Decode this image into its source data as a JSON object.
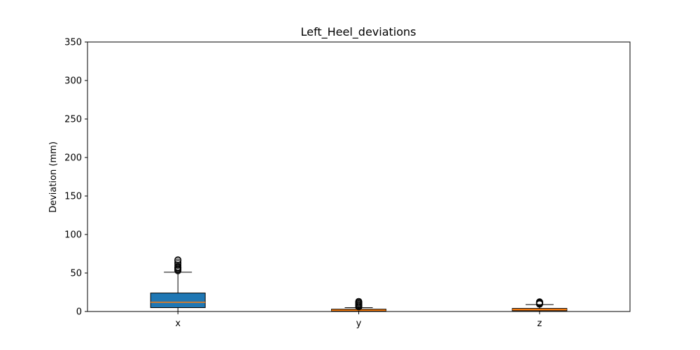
{
  "chart_data": {
    "type": "box",
    "title": "Left_Heel_deviations",
    "xlabel": "",
    "ylabel": "Deviation (mm)",
    "ylim": [
      0,
      350
    ],
    "yticks": [
      0,
      50,
      100,
      150,
      200,
      250,
      300,
      350
    ],
    "grid": false,
    "categories": [
      "x",
      "y",
      "z"
    ],
    "boxes": [
      {
        "category": "x",
        "q1": 5,
        "median": 12,
        "q3": 24,
        "whisker_low": 0,
        "whisker_high": 51,
        "outliers": [
          53,
          54,
          55,
          56,
          57,
          58,
          60,
          62,
          64,
          66,
          67
        ],
        "color": "#1f77b4"
      },
      {
        "category": "y",
        "q1": 0.5,
        "median": 1.5,
        "q3": 3,
        "whisker_low": 0,
        "whisker_high": 5,
        "outliers": [
          6,
          7,
          8,
          9,
          10,
          11,
          12,
          13
        ],
        "color": "#ff7f0e"
      },
      {
        "category": "z",
        "q1": 1,
        "median": 2.5,
        "q3": 4,
        "whisker_low": 0,
        "whisker_high": 9,
        "outliers": [
          9.5,
          10,
          10.5,
          11,
          11.5,
          12,
          12.5
        ],
        "color": "#ff7f0e"
      }
    ],
    "median_color": "#ff7f0e"
  }
}
